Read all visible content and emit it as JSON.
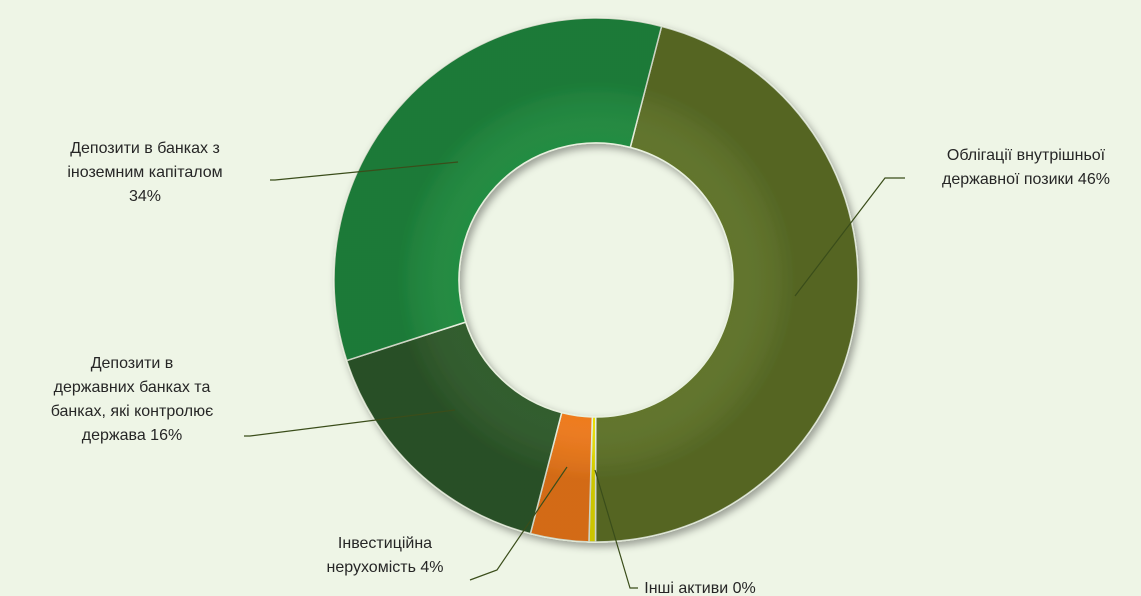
{
  "chart_data": {
    "type": "pie",
    "donut": true,
    "title": "",
    "slices": [
      {
        "label_lines": [
          "Облігації внутрішньої",
          "державної позики 46%"
        ],
        "name": "Облігації внутрішньої державної позики",
        "value": 46,
        "color": "#5f7328"
      },
      {
        "label_lines": [
          "Інші активи 0%"
        ],
        "name": "Інші активи",
        "value": 0.4,
        "color": "#e8e000"
      },
      {
        "label_lines": [
          "Інвестиційна",
          "нерухомість 4%"
        ],
        "name": "Інвестиційна нерухомість",
        "value": 3.6,
        "color": "#f07a1a"
      },
      {
        "label_lines": [
          "Депозити в",
          "державних банках та",
          "банках, які контролює",
          "держава 16%"
        ],
        "name": "Депозити в державних банках та банках, які контролює держава",
        "value": 16,
        "color": "#2e5a2a"
      },
      {
        "label_lines": [
          "Депозити в банках з",
          "іноземним капіталом",
          "34%"
        ],
        "name": "Депозити в банках з іноземним капіталом",
        "value": 34,
        "color": "#1f8a3e"
      }
    ],
    "legend": "none"
  }
}
